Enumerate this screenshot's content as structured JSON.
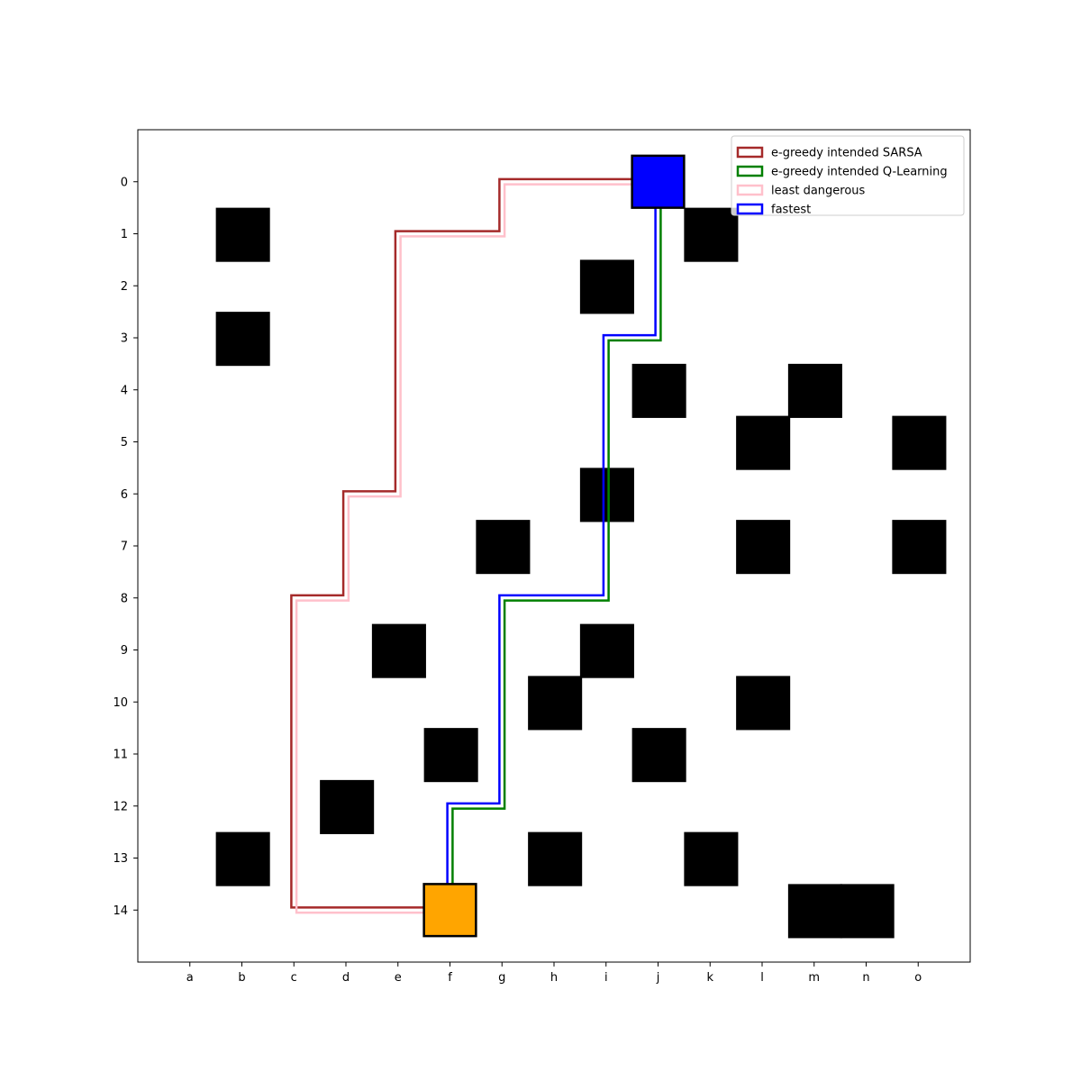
{
  "chart_data": {
    "type": "grid-path-map",
    "title": "",
    "xlabel": "",
    "ylabel": "",
    "x_ticks": [
      "a",
      "b",
      "c",
      "d",
      "e",
      "f",
      "g",
      "h",
      "i",
      "j",
      "k",
      "l",
      "m",
      "n",
      "o"
    ],
    "y_ticks": [
      "0",
      "1",
      "2",
      "3",
      "4",
      "5",
      "6",
      "7",
      "8",
      "9",
      "10",
      "11",
      "12",
      "13",
      "14"
    ],
    "xlim": [
      -1,
      15
    ],
    "ylim": [
      15,
      -1
    ],
    "y_inverted": true,
    "grid": false,
    "legend_position": "top-right",
    "start": {
      "col": 9,
      "row": 0,
      "color": "#0000ff"
    },
    "goal": {
      "col": 5,
      "row": 14,
      "color": "#ffa500"
    },
    "obstacle_color": "#000000",
    "obstacles": [
      [
        1,
        1
      ],
      [
        10,
        1
      ],
      [
        8,
        2
      ],
      [
        1,
        3
      ],
      [
        9,
        4
      ],
      [
        12,
        4
      ],
      [
        11,
        5
      ],
      [
        14,
        5
      ],
      [
        8,
        6
      ],
      [
        6,
        7
      ],
      [
        11,
        7
      ],
      [
        14,
        7
      ],
      [
        4,
        9
      ],
      [
        8,
        9
      ],
      [
        7,
        10
      ],
      [
        11,
        10
      ],
      [
        5,
        11
      ],
      [
        9,
        11
      ],
      [
        3,
        12
      ],
      [
        1,
        13
      ],
      [
        7,
        13
      ],
      [
        10,
        13
      ],
      [
        12,
        14
      ],
      [
        13,
        14
      ]
    ],
    "series": [
      {
        "name": "e-greedy intended SARSA",
        "color": "#a52a2a",
        "offset": [
          -0.05,
          -0.05
        ],
        "path": [
          [
            9,
            0
          ],
          [
            6,
            0
          ],
          [
            6,
            1
          ],
          [
            4,
            1
          ],
          [
            4,
            6
          ],
          [
            3,
            6
          ],
          [
            3,
            8
          ],
          [
            2,
            8
          ],
          [
            2,
            14
          ],
          [
            5,
            14
          ]
        ]
      },
      {
        "name": "e-greedy intended Q-Learning",
        "color": "#008000",
        "offset": [
          0.05,
          0.05
        ],
        "path": [
          [
            9,
            0
          ],
          [
            9,
            3
          ],
          [
            8,
            3
          ],
          [
            8,
            4
          ],
          [
            8,
            8
          ],
          [
            6,
            8
          ],
          [
            6,
            12
          ],
          [
            5,
            12
          ],
          [
            5,
            14
          ]
        ]
      },
      {
        "name": "least dangerous",
        "color": "#ffc0cb",
        "offset": [
          0.05,
          0.05
        ],
        "path": [
          [
            9,
            0
          ],
          [
            6,
            0
          ],
          [
            6,
            1
          ],
          [
            4,
            1
          ],
          [
            4,
            6
          ],
          [
            3,
            6
          ],
          [
            3,
            8
          ],
          [
            2,
            8
          ],
          [
            2,
            14
          ],
          [
            5,
            14
          ]
        ]
      },
      {
        "name": "fastest",
        "color": "#0000ff",
        "offset": [
          -0.05,
          -0.05
        ],
        "path": [
          [
            9,
            0
          ],
          [
            9,
            3
          ],
          [
            8,
            3
          ],
          [
            8,
            4
          ],
          [
            8,
            8
          ],
          [
            6,
            8
          ],
          [
            6,
            12
          ],
          [
            5,
            12
          ],
          [
            5,
            14
          ]
        ]
      }
    ]
  }
}
